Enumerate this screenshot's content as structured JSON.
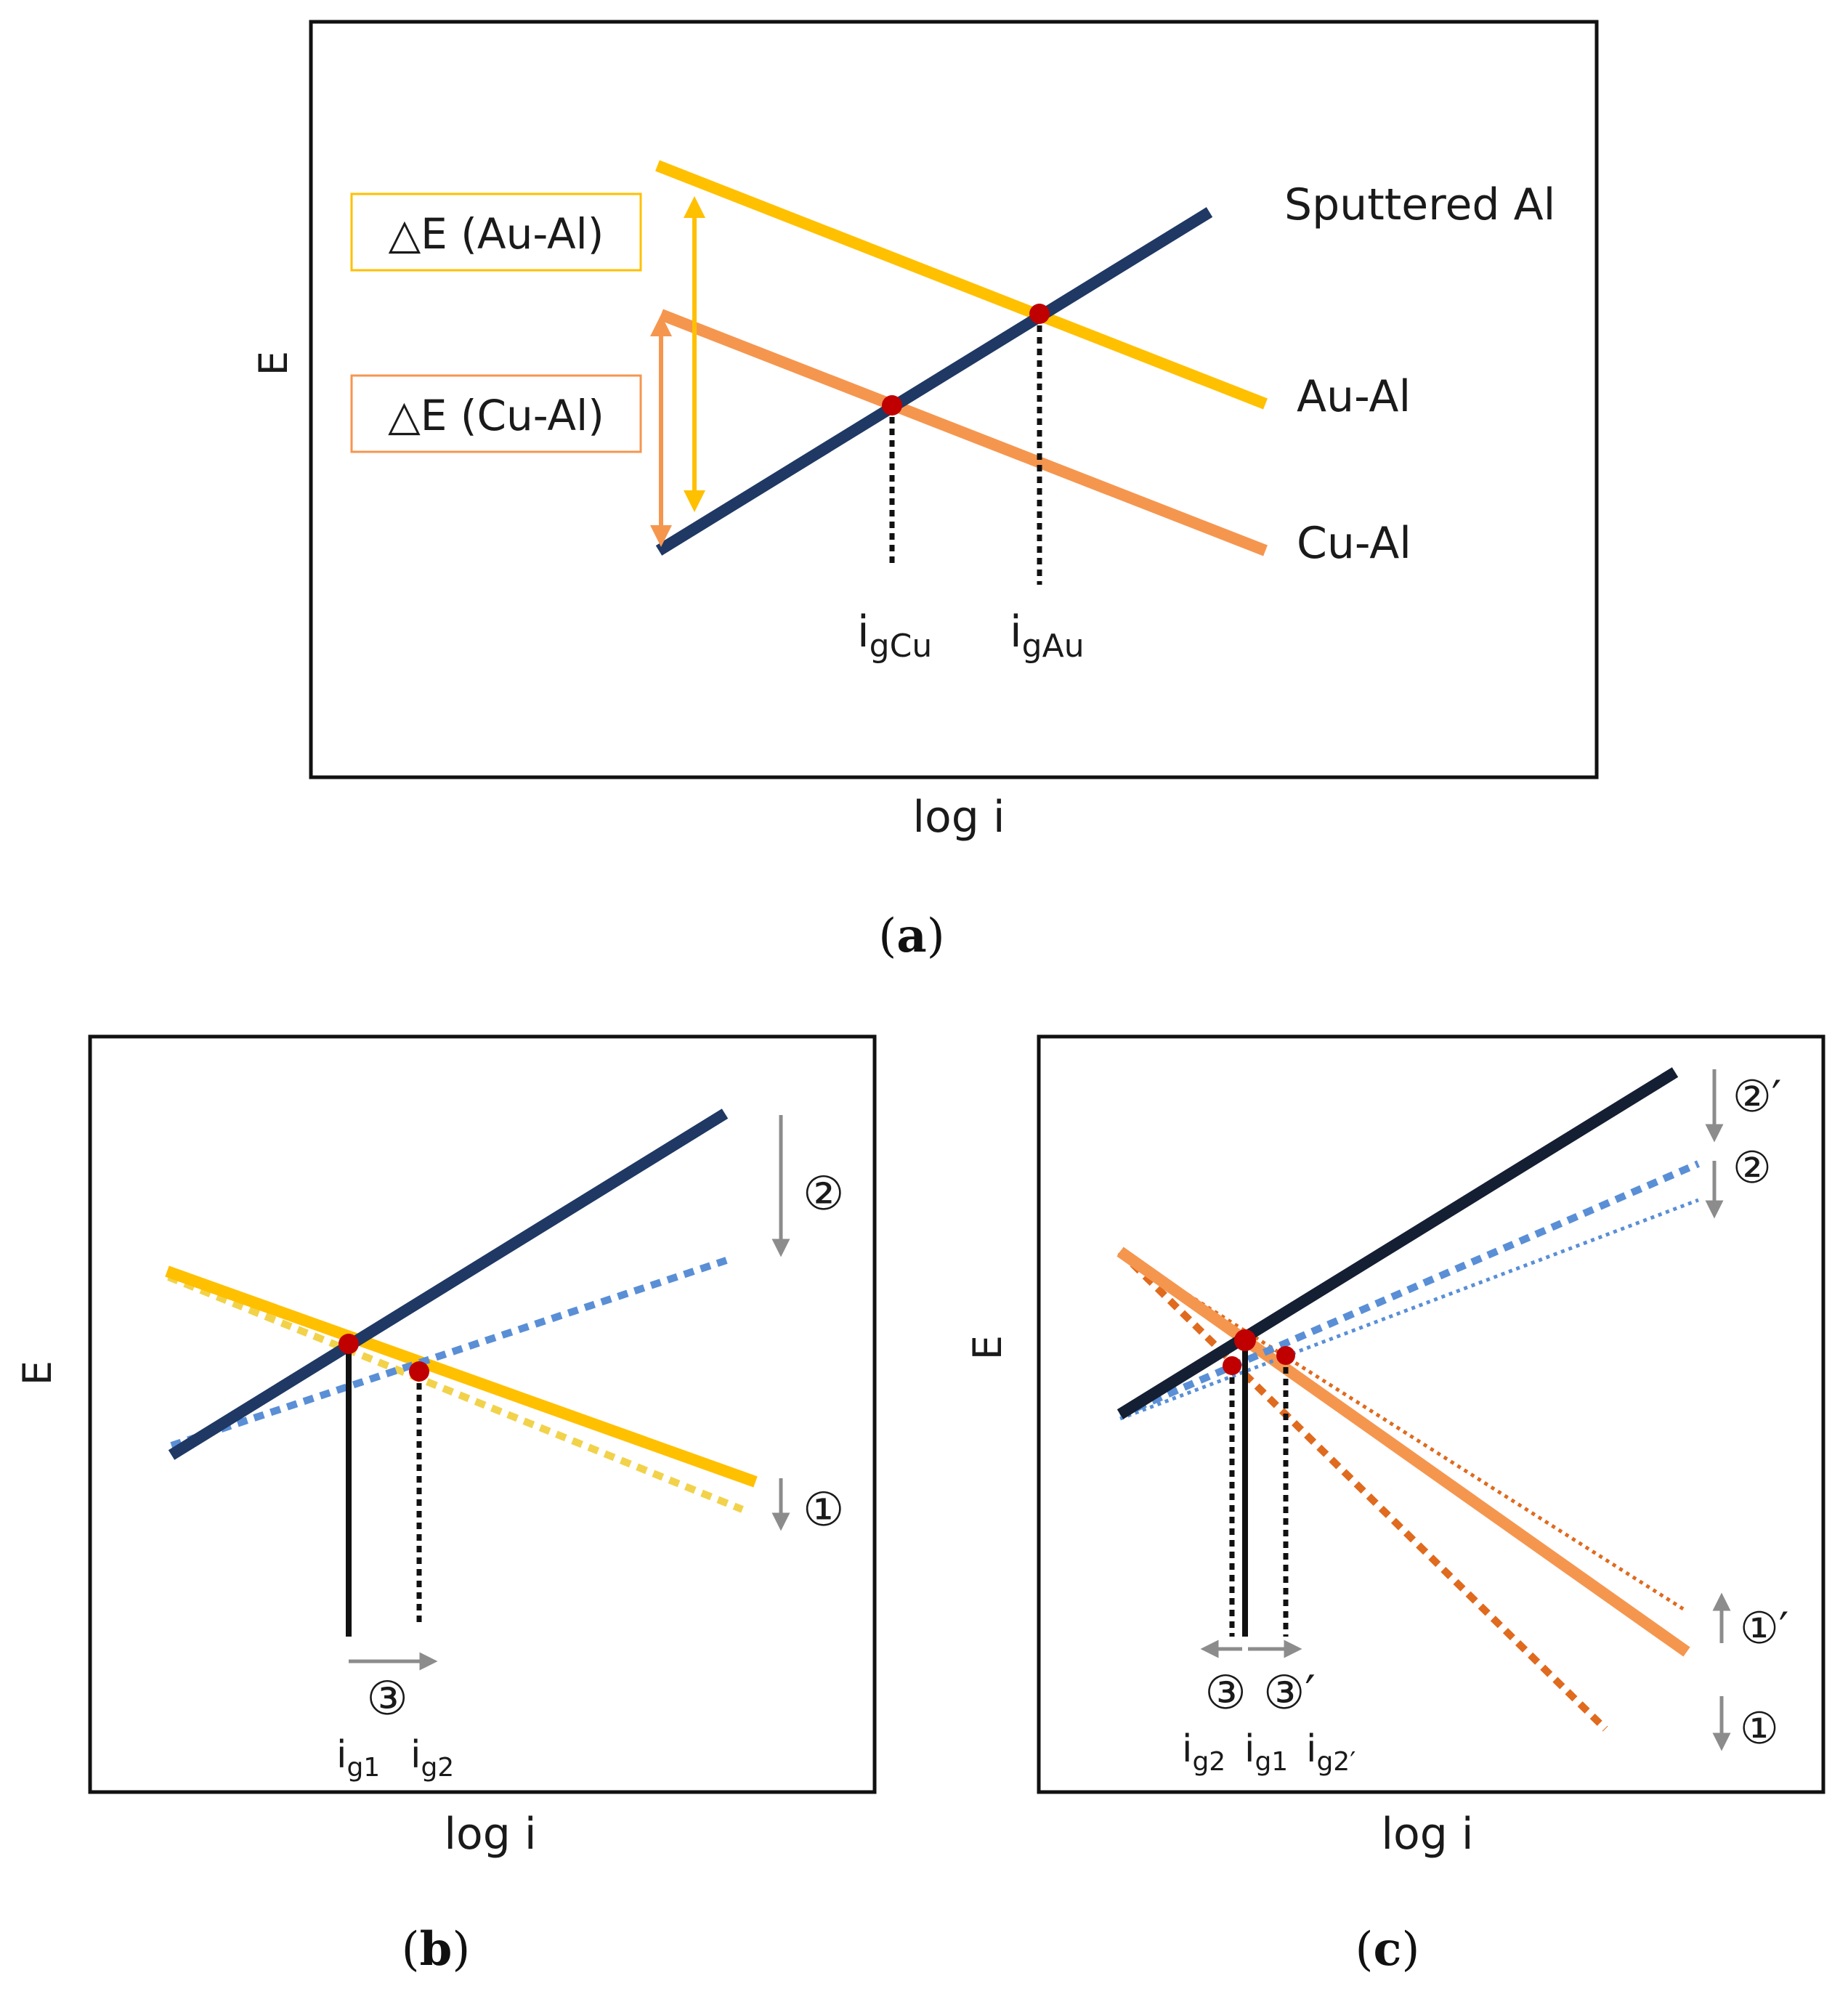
{
  "colors": {
    "navy": "#1f3864",
    "navy_dark": "#141f33",
    "gold": "#ffc000",
    "orange": "#f5964f",
    "orange_dark": "#e06a1e",
    "blue_dotted": "#5a8fd6",
    "red_dot": "#c00000",
    "gray_arrow": "#8c8c8c"
  },
  "panel_a": {
    "y_axis": "E",
    "x_axis": "log i",
    "caption": "a",
    "lines": {
      "sputtered": "Sputtered Al",
      "au": "Au-Al",
      "cu": "Cu-Al"
    },
    "boxes": {
      "au": "△E (Au-Al)",
      "cu": "△E (Cu-Al)"
    },
    "intersections": {
      "cu": {
        "base": "i",
        "sub": "gCu"
      },
      "au": {
        "base": "i",
        "sub": "gAu"
      }
    }
  },
  "panel_b": {
    "y_axis": "E",
    "x_axis": "log i",
    "caption": "b",
    "markers": {
      "step1": "①",
      "step2": "②",
      "step3": "③"
    },
    "currents": {
      "g1": {
        "base": "i",
        "sub": "g1"
      },
      "g2": {
        "base": "i",
        "sub": "g2"
      }
    }
  },
  "panel_c": {
    "y_axis": "E",
    "x_axis": "log i",
    "caption": "c",
    "markers": {
      "step1": "①",
      "step1p": "①′",
      "step2": "②",
      "step2p": "②′",
      "step3": "③",
      "step3p": "③′"
    },
    "currents": {
      "g2": {
        "base": "i",
        "sub": "g2"
      },
      "g1": {
        "base": "i",
        "sub": "g1"
      },
      "g2p": {
        "base": "i",
        "sub": "g2′"
      }
    }
  }
}
